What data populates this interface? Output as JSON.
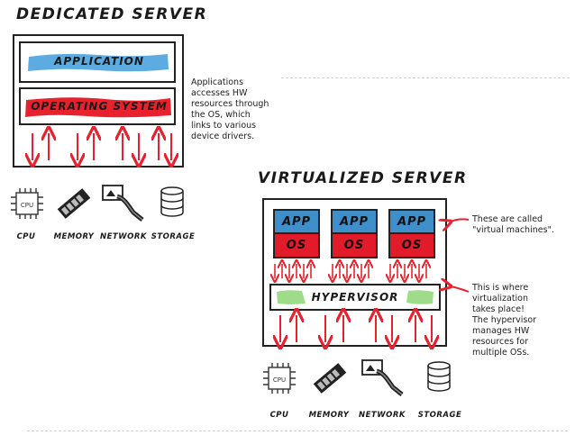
{
  "dedicated": {
    "title": "DEDICATED SERVER",
    "application_label": "APPLICATION",
    "os_label": "OPERATING SYSTEM",
    "note_lines": [
      "Applications",
      "accesses HW",
      "resources through",
      "the OS, which",
      "links to various",
      "device drivers."
    ]
  },
  "virtualized": {
    "title": "VIRTUALIZED SERVER",
    "vms": [
      {
        "app_label": "APP",
        "os_label": "OS"
      },
      {
        "app_label": "APP",
        "os_label": "OS"
      },
      {
        "app_label": "APP",
        "os_label": "OS"
      }
    ],
    "hypervisor_label": "HYPERVISOR",
    "vm_note_lines": [
      "These are called",
      "\"virtual machines\"."
    ],
    "hypervisor_note_lines": [
      "This is where",
      "virtualization",
      "takes place!",
      "The hypervisor",
      "manages HW",
      "resources for",
      "multiple OSs."
    ]
  },
  "hardware": {
    "cpu": "CPU",
    "memory": "MEMORY",
    "network": "NETWORK",
    "storage": "STORAGE",
    "chip_text": "CPU"
  },
  "colors": {
    "application_band": "#4aa3df",
    "os_band": "#e8212e",
    "hypervisor_band": "#9fdc8a",
    "app_box": "#3f8fcb",
    "os_box": "#e21b2a",
    "arrow": "#e8212e"
  }
}
